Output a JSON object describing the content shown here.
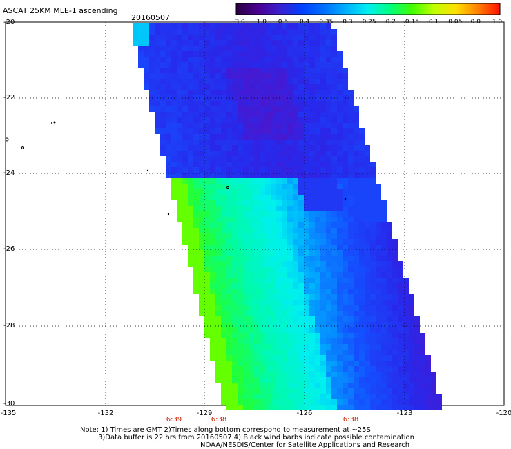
{
  "header": {
    "title": "ASCAT 25KM MLE-1 ascending",
    "date": "20160507"
  },
  "colorbar": {
    "labels": [
      "-3.0",
      "-1.0",
      "-0.5",
      "-0.4",
      "-0.35",
      "-0.3",
      "-0.25",
      "-0.2",
      "-0.15",
      "-0.1",
      "-0.05",
      "0.0",
      "1.0"
    ],
    "colors": [
      "#2a0040",
      "#4a0090",
      "#3a20d0",
      "#0040ff",
      "#0070ff",
      "#00b0ff",
      "#00f0f0",
      "#00ff80",
      "#40ff00",
      "#c0ff00",
      "#ffe000",
      "#ff8000",
      "#ff1000"
    ]
  },
  "axes": {
    "y_labels": [
      "-20",
      "-22",
      "-24",
      "-26",
      "-28",
      "-30"
    ],
    "x_labels": [
      "-135",
      "-132",
      "-129",
      "-126",
      "-123",
      "-120"
    ]
  },
  "times": [
    "6:39",
    "6:38",
    "6:38"
  ],
  "notes": {
    "line1": "Note: 1) Times are GMT 2)Times along bottom correspond to measurement at ~25S",
    "line2": "3)Data buffer is 22 hrs from 20160507 4) Black wind barbs indicate possible contamination",
    "line3": "NOAA/NESDIS/Center for Satellite Applications and Research"
  }
}
